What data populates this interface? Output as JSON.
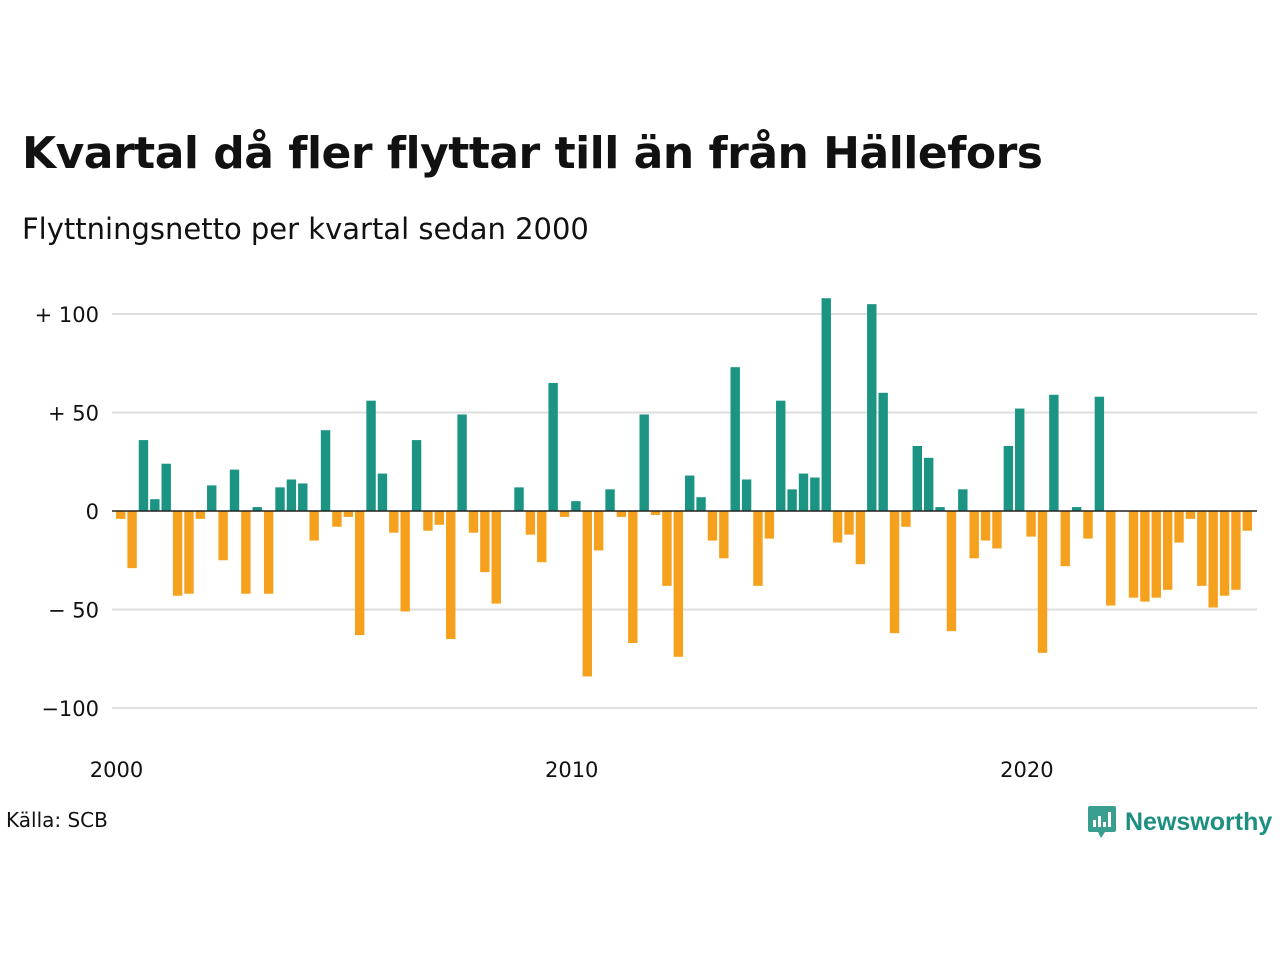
{
  "title": "Kvartal då fler flyttar till än från Hällefors",
  "subtitle": "Flyttningsnetto per kvartal sedan 2000",
  "source": "Källa: SCB",
  "brand": "Newsworthy",
  "colors": {
    "positive": "#1b9484",
    "negative": "#f5a11d",
    "grid": "#dedede",
    "brand": "#1d8f82"
  },
  "chart_data": {
    "type": "bar",
    "ylim": [
      -110,
      112
    ],
    "yticks": [
      {
        "value": 100,
        "label": "+ 100"
      },
      {
        "value": 50,
        "label": "+  50"
      },
      {
        "value": 0,
        "label": "0"
      },
      {
        "value": -50,
        "label": "− 50"
      },
      {
        "value": -100,
        "label": "−100"
      }
    ],
    "xticks": [
      {
        "quarter_index": 0,
        "label": "2000"
      },
      {
        "quarter_index": 40,
        "label": "2010"
      },
      {
        "quarter_index": 80,
        "label": "2020"
      }
    ],
    "grid": true,
    "legend": false,
    "period": "kvartal 2000–2024",
    "values": [
      -4,
      -29,
      36,
      6,
      24,
      -43,
      -42,
      -4,
      13,
      -25,
      21,
      -42,
      2,
      -42,
      12,
      16,
      14,
      -15,
      41,
      -8,
      -3,
      -63,
      56,
      19,
      -11,
      -51,
      36,
      -10,
      -7,
      -65,
      49,
      -11,
      -31,
      -47,
      0,
      12,
      -12,
      -26,
      65,
      -3,
      5,
      -84,
      -20,
      11,
      -3,
      -67,
      49,
      -2,
      -38,
      -74,
      18,
      7,
      -15,
      -24,
      73,
      16,
      -38,
      -14,
      56,
      11,
      19,
      17,
      108,
      -16,
      -12,
      -27,
      105,
      60,
      -62,
      -8,
      33,
      27,
      2,
      -61,
      11,
      -24,
      -15,
      -19,
      33,
      52,
      -13,
      -72,
      59,
      -28,
      2,
      -14,
      58,
      -48,
      0,
      -44,
      -46,
      -44,
      -40,
      -16,
      -4,
      -38,
      -49,
      -43,
      -40,
      -10
    ]
  }
}
